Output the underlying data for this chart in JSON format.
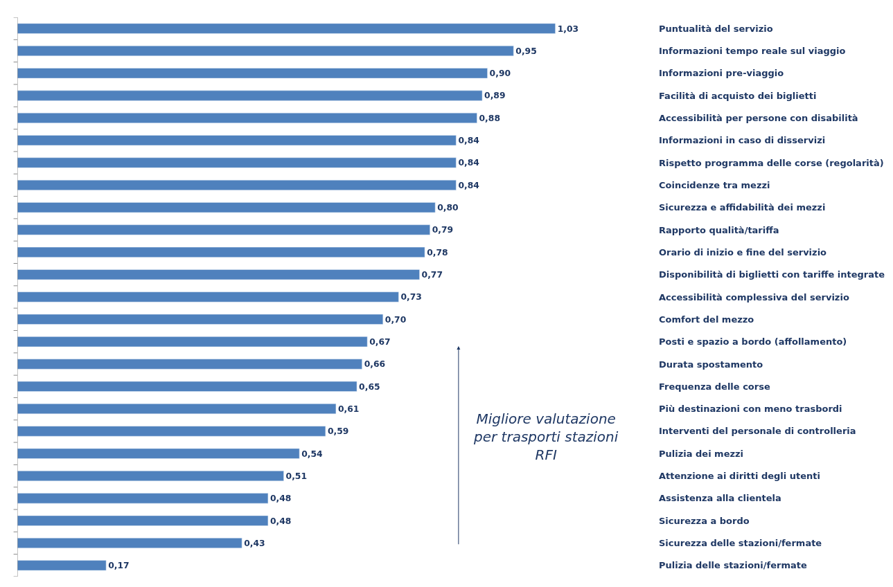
{
  "chart_data": {
    "type": "bar",
    "orientation": "horizontal",
    "tick_labels": "y",
    "categories": [
      "Puntualità del servizio",
      "Informazioni tempo reale sul viaggio",
      "Informazioni pre-viaggio",
      "Facilità di acquisto dei biglietti",
      "Accessibilità per persone con disabilità",
      "Informazioni in caso di disservizi",
      "Rispetto programma delle corse (regolarità)",
      "Coincidenze tra mezzi",
      "Sicurezza e affidabilità dei mezzi",
      "Rapporto qualità/tariffa",
      "Orario di inizio e fine del servizio",
      "Disponibilità di biglietti con tariffe integrate",
      "Accessibilità complessiva del servizio",
      "Comfort del mezzo",
      "Posti e spazio a bordo (affollamento)",
      "Durata spostamento",
      "Frequenza delle corse",
      "Più destinazioni con meno trasbordi",
      "Interventi del personale di controlleria",
      "Pulizia dei mezzi",
      "Attenzione ai diritti degli utenti",
      "Assistenza alla clientela",
      "Sicurezza a bordo",
      "Sicurezza delle stazioni/fermate",
      "Pulizia delle stazioni/fermate"
    ],
    "values": [
      1.03,
      0.95,
      0.9,
      0.89,
      0.88,
      0.84,
      0.84,
      0.84,
      0.8,
      0.79,
      0.78,
      0.77,
      0.73,
      0.7,
      0.67,
      0.66,
      0.65,
      0.61,
      0.59,
      0.54,
      0.51,
      0.48,
      0.48,
      0.43,
      0.17
    ],
    "value_labels": [
      "1,03",
      "0,95",
      "0,90",
      "0,89",
      "0,88",
      "0,84",
      "0,84",
      "0,84",
      "0,80",
      "0,79",
      "0,78",
      "0,77",
      "0,73",
      "0,70",
      "0,67",
      "0,66",
      "0,65",
      "0,61",
      "0,59",
      "0,54",
      "0,51",
      "0,48",
      "0,48",
      "0,43",
      "0,17"
    ],
    "color": "#4f81bd",
    "annotations": [
      "Migliore valutazione\nper trasporti stazioni\nRFI"
    ]
  }
}
